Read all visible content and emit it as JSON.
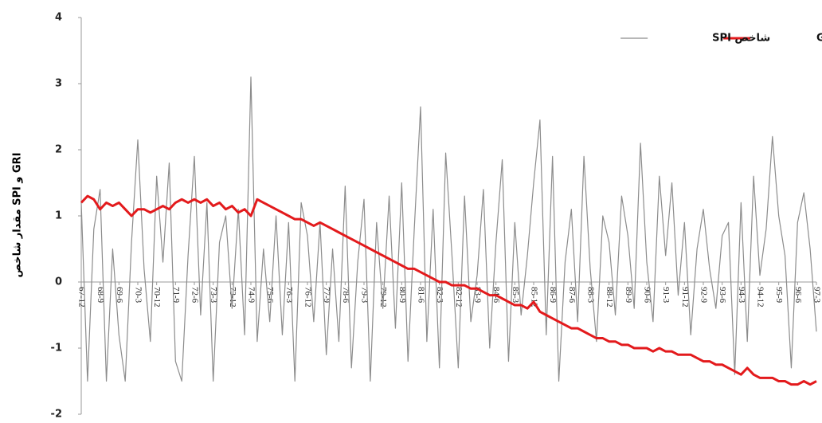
{
  "chart_data": {
    "type": "line",
    "y_label": "مقدار شاخص SPI و GRI",
    "categories": [
      "67-12",
      null,
      null,
      "68-9",
      null,
      null,
      "69-6",
      null,
      null,
      "70-3",
      null,
      null,
      "70-12",
      null,
      null,
      "71-9",
      null,
      null,
      "72-6",
      null,
      null,
      "73-3",
      null,
      null,
      "73-12",
      null,
      null,
      "74-9",
      null,
      null,
      "75-6",
      null,
      null,
      "76-3",
      null,
      null,
      "76-12",
      null,
      null,
      "77-9",
      null,
      null,
      "78-6",
      null,
      null,
      "79-3",
      null,
      null,
      "79-12",
      null,
      null,
      "80-9",
      null,
      null,
      "81-6",
      null,
      null,
      "82-3",
      null,
      null,
      "82-12",
      null,
      null,
      "83-9",
      null,
      null,
      "84-6",
      null,
      null,
      "85-3",
      null,
      null,
      "85-12",
      null,
      null,
      "86-9",
      null,
      null,
      "87-6",
      null,
      null,
      "88-3",
      null,
      null,
      "88-12",
      null,
      null,
      "89-9",
      null,
      null,
      "90-6",
      null,
      null,
      "91-3",
      null,
      null,
      "91-12",
      null,
      null,
      "92-9",
      null,
      null,
      "93-6",
      null,
      null,
      "94-3",
      null,
      null,
      "94-12",
      null,
      null,
      "95-9",
      null,
      null,
      "96-6",
      null,
      null,
      "97-3"
    ],
    "series": [
      {
        "name": "شاخص SPI",
        "color": "#8c8c8c",
        "width": 1.2,
        "values": [
          1.2,
          -1.5,
          0.8,
          1.4,
          -1.5,
          0.5,
          -0.8,
          -1.5,
          0.6,
          2.15,
          0.2,
          -0.9,
          1.6,
          0.3,
          1.8,
          -1.2,
          -1.5,
          0.4,
          1.9,
          -0.5,
          1.2,
          -1.5,
          0.6,
          1.0,
          -0.4,
          1.1,
          -0.8,
          3.1,
          -0.9,
          0.5,
          -0.6,
          1.0,
          -0.8,
          0.9,
          -1.5,
          1.2,
          0.7,
          -0.6,
          0.9,
          -1.1,
          0.5,
          -0.9,
          1.45,
          -1.3,
          0.3,
          1.25,
          -1.5,
          0.9,
          -0.4,
          1.3,
          -0.7,
          1.5,
          -1.2,
          0.8,
          2.65,
          -0.9,
          1.1,
          -1.3,
          1.95,
          0.4,
          -1.3,
          1.3,
          -0.6,
          0.1,
          1.4,
          -1.0,
          0.6,
          1.85,
          -1.2,
          0.9,
          -0.5,
          0.4,
          1.5,
          2.45,
          -0.8,
          1.9,
          -1.5,
          0.3,
          1.1,
          -0.6,
          1.9,
          0.2,
          -0.9,
          1.0,
          0.6,
          -0.5,
          1.3,
          0.7,
          -0.4,
          2.1,
          0.3,
          -0.6,
          1.6,
          0.4,
          1.5,
          -0.2,
          0.9,
          -0.8,
          0.5,
          1.1,
          0.2,
          -0.4,
          0.7,
          0.9,
          -1.4,
          1.2,
          -0.9,
          1.6,
          0.1,
          0.8,
          2.2,
          1.0,
          0.4,
          -1.3,
          0.9,
          1.35,
          0.5,
          -0.75
        ]
      },
      {
        "name": "شاخص GRI",
        "color": "#e31a1c",
        "width": 3,
        "values": [
          1.2,
          1.3,
          1.25,
          1.1,
          1.2,
          1.15,
          1.2,
          1.1,
          1.0,
          1.1,
          1.1,
          1.05,
          1.1,
          1.15,
          1.1,
          1.2,
          1.25,
          1.2,
          1.25,
          1.2,
          1.25,
          1.15,
          1.2,
          1.1,
          1.15,
          1.05,
          1.1,
          1.0,
          1.25,
          1.2,
          1.15,
          1.1,
          1.05,
          1.0,
          0.95,
          0.95,
          0.9,
          0.85,
          0.9,
          0.85,
          0.8,
          0.75,
          0.7,
          0.65,
          0.6,
          0.55,
          0.5,
          0.45,
          0.4,
          0.35,
          0.3,
          0.25,
          0.2,
          0.2,
          0.15,
          0.1,
          0.05,
          0.0,
          0.0,
          -0.05,
          -0.05,
          -0.05,
          -0.1,
          -0.1,
          -0.15,
          -0.2,
          -0.2,
          -0.25,
          -0.3,
          -0.35,
          -0.35,
          -0.4,
          -0.3,
          -0.45,
          -0.5,
          -0.55,
          -0.6,
          -0.65,
          -0.7,
          -0.7,
          -0.75,
          -0.8,
          -0.85,
          -0.85,
          -0.9,
          -0.9,
          -0.95,
          -0.95,
          -1.0,
          -1.0,
          -1.0,
          -1.05,
          -1.0,
          -1.05,
          -1.05,
          -1.1,
          -1.1,
          -1.1,
          -1.15,
          -1.2,
          -1.2,
          -1.25,
          -1.25,
          -1.3,
          -1.35,
          -1.4,
          -1.3,
          -1.4,
          -1.45,
          -1.45,
          -1.45,
          -1.5,
          -1.5,
          -1.55,
          -1.55,
          -1.5,
          -1.55,
          -1.5
        ]
      }
    ],
    "ylim": [
      -2,
      4
    ],
    "yticks": [
      -2,
      -1,
      0,
      1,
      2,
      3,
      4
    ],
    "grid": false
  }
}
